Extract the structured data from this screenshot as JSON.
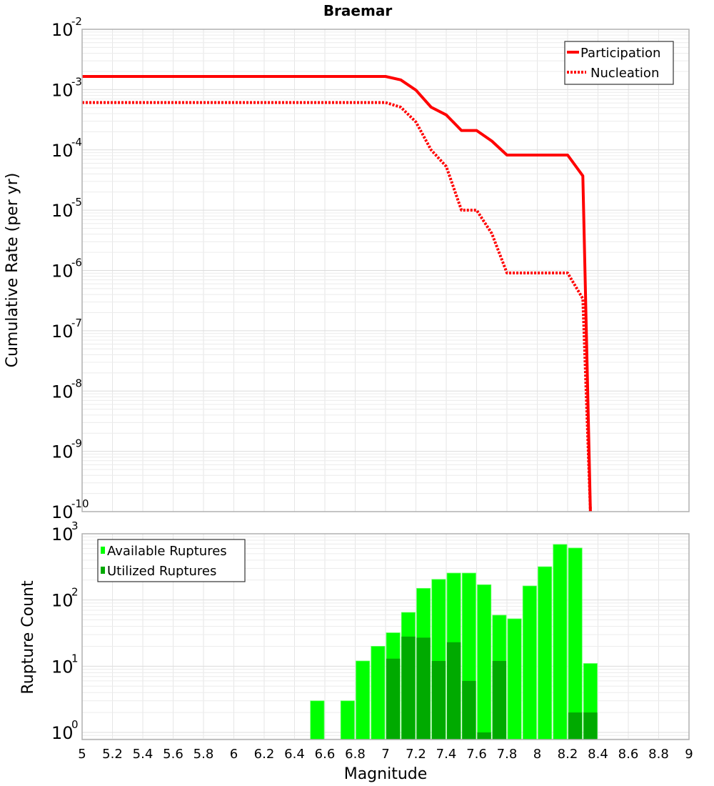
{
  "chart_data": [
    {
      "type": "line",
      "title": "Braemar",
      "xlabel": "",
      "ylabel": "Cumulative Rate (per yr)",
      "xlim": [
        5,
        9
      ],
      "ylim": [
        1e-10,
        0.01
      ],
      "yscale": "log",
      "grid": true,
      "legend_position": "top-right",
      "y_ticks": [
        {
          "base": "10",
          "exp": "-2"
        },
        {
          "base": "10",
          "exp": "-3"
        },
        {
          "base": "10",
          "exp": "-4"
        },
        {
          "base": "10",
          "exp": "-5"
        },
        {
          "base": "10",
          "exp": "-6"
        },
        {
          "base": "10",
          "exp": "-7"
        },
        {
          "base": "10",
          "exp": "-8"
        },
        {
          "base": "10",
          "exp": "-9"
        },
        {
          "base": "10",
          "exp": "-10"
        }
      ],
      "series": [
        {
          "name": "Participation",
          "color": "#ff0000",
          "style": "solid",
          "x": [
            5.0,
            7.0,
            7.1,
            7.2,
            7.3,
            7.4,
            7.5,
            7.6,
            7.7,
            7.8,
            7.9,
            8.0,
            8.1,
            8.2,
            8.3,
            8.35
          ],
          "y": [
            0.00165,
            0.00165,
            0.00145,
            0.00098,
            0.00051,
            0.00038,
            0.00021,
            0.00021,
            0.00014,
            8.2e-05,
            8.2e-05,
            8.2e-05,
            8.2e-05,
            8.2e-05,
            3.7e-05,
            1e-10
          ]
        },
        {
          "name": "Nucleation",
          "color": "#ff0000",
          "style": "dotted",
          "x": [
            5.0,
            7.0,
            7.1,
            7.2,
            7.3,
            7.4,
            7.5,
            7.6,
            7.7,
            7.8,
            7.9,
            8.0,
            8.1,
            8.2,
            8.3,
            8.35
          ],
          "y": [
            0.00061,
            0.00061,
            0.00051,
            0.00029,
            0.0001,
            5.3e-05,
            1e-05,
            1e-05,
            4.1e-06,
            9.1e-07,
            9.1e-07,
            9.1e-07,
            9.1e-07,
            9.1e-07,
            3.4e-07,
            1e-10
          ]
        }
      ]
    },
    {
      "type": "bar",
      "title": "",
      "xlabel": "Magnitude",
      "ylabel": "Rupture Count",
      "xlim": [
        5,
        9
      ],
      "ylim": [
        0.78,
        1000
      ],
      "yscale": "log",
      "grid": true,
      "legend_position": "top-left",
      "bin_width": 0.1,
      "x_ticks": [
        "5",
        "5.2",
        "5.4",
        "5.6",
        "5.8",
        "6",
        "6.2",
        "6.4",
        "6.6",
        "6.8",
        "7",
        "7.2",
        "7.4",
        "7.6",
        "7.8",
        "8",
        "8.2",
        "8.4",
        "8.6",
        "8.8",
        "9"
      ],
      "y_ticks": [
        {
          "base": "10",
          "exp": "3"
        },
        {
          "base": "10",
          "exp": "2"
        },
        {
          "base": "10",
          "exp": "1"
        },
        {
          "base": "10",
          "exp": "0"
        }
      ],
      "categories": [
        6.55,
        6.75,
        6.85,
        6.95,
        7.05,
        7.15,
        7.25,
        7.35,
        7.45,
        7.55,
        7.65,
        7.75,
        7.85,
        7.95,
        8.05,
        8.15,
        8.25,
        8.35
      ],
      "series": [
        {
          "name": "Available Ruptures",
          "color": "#00ff00",
          "values": [
            3,
            3,
            12,
            20,
            32,
            65,
            150,
            205,
            255,
            255,
            170,
            59,
            52,
            163,
            318,
            690,
            610,
            11
          ]
        },
        {
          "name": "Utilized Ruptures",
          "color": "#00aa00",
          "values": [
            0,
            0,
            0,
            0,
            13,
            28,
            27,
            12,
            23,
            6,
            1,
            12,
            0,
            0,
            0,
            0,
            2,
            2
          ]
        }
      ]
    }
  ]
}
